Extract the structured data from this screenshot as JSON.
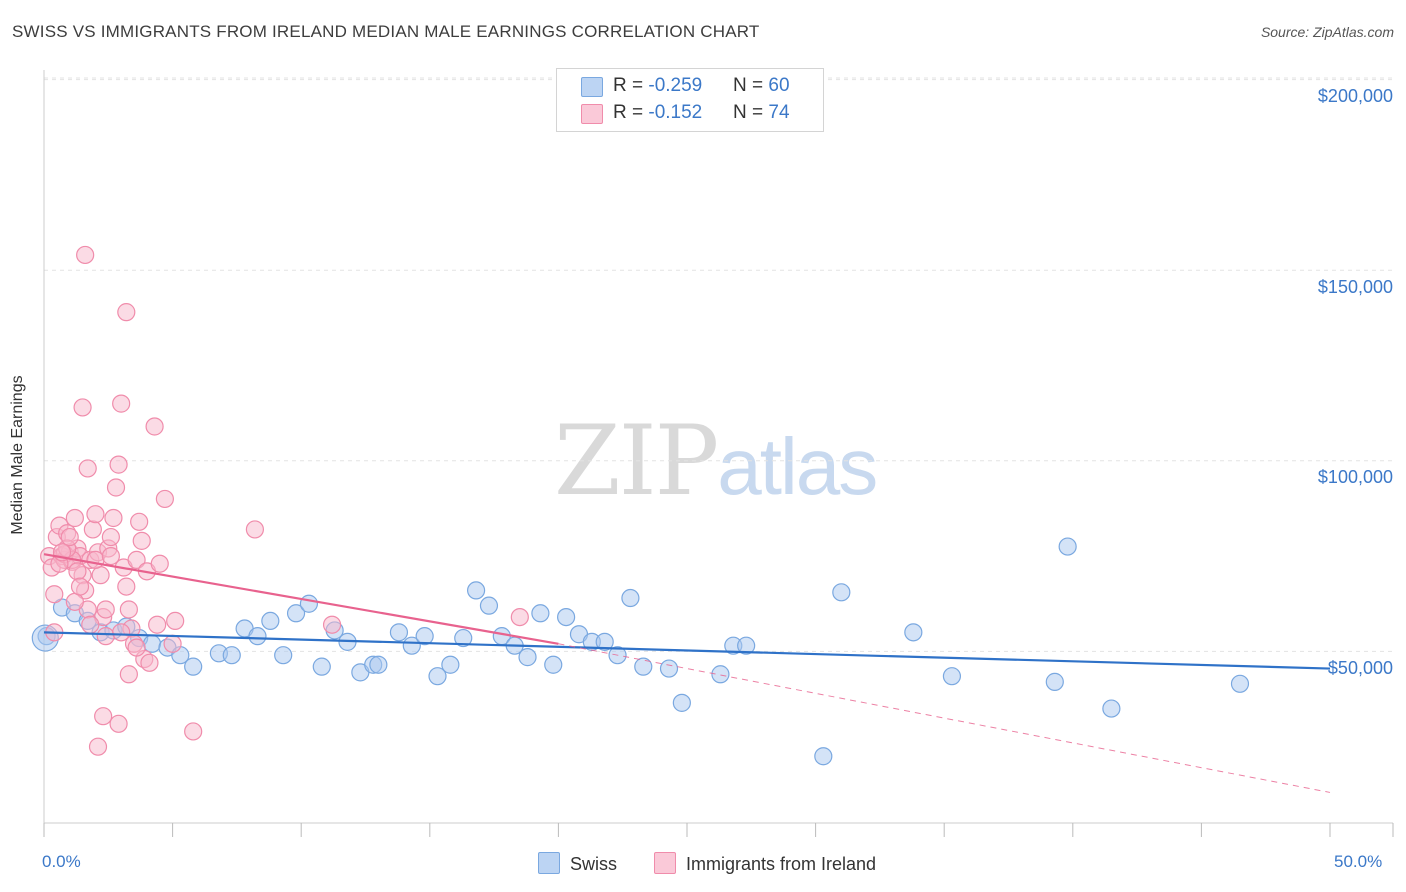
{
  "title": "SWISS VS IMMIGRANTS FROM IRELAND MEDIAN MALE EARNINGS CORRELATION CHART",
  "source": "Source: ZipAtlas.com",
  "watermark": {
    "zip": "ZIP",
    "atlas": "atlas"
  },
  "legend": {
    "swiss": {
      "r_label": "R = ",
      "r_value": "-0.259",
      "n_label": "N = ",
      "n_value": "60"
    },
    "ireland": {
      "r_label": "R = ",
      "r_value": "-0.152",
      "n_label": "N = ",
      "n_value": "74"
    }
  },
  "bottom_legend": {
    "swiss": "Swiss",
    "ireland": "Immigrants from Ireland"
  },
  "colors": {
    "swiss_fill": "#a9c8f0",
    "swiss_stroke": "#7aa8e0",
    "swiss_line": "#2f72c8",
    "ireland_fill": "#f7b8cc",
    "ireland_stroke": "#f08cab",
    "ireland_line": "#e8628e",
    "grid": "#e3e3e3",
    "axis_text": "#3b78c8"
  },
  "chart_data": {
    "type": "scatter",
    "title": "SWISS VS IMMIGRANTS FROM IRELAND MEDIAN MALE EARNINGS CORRELATION CHART",
    "xlabel": "",
    "ylabel": "Median Male Earnings",
    "xlim": [
      0,
      50
    ],
    "ylim": [
      0,
      205000
    ],
    "x_tick_labels": [
      "0.0%",
      "50.0%"
    ],
    "y_ticks": [
      {
        "value": 50000,
        "label": "$50,000"
      },
      {
        "value": 100000,
        "label": "$100,000"
      },
      {
        "value": 150000,
        "label": "$150,000"
      },
      {
        "value": 200000,
        "label": "$200,000"
      }
    ],
    "series": [
      {
        "name": "Swiss",
        "r": -0.259,
        "n": 60,
        "trend": {
          "x0": 0,
          "y0": 55000,
          "x1": 50,
          "y1": 45500
        },
        "points": [
          [
            0.1,
            54000
          ],
          [
            0.7,
            61500
          ],
          [
            1.2,
            60000
          ],
          [
            1.7,
            58000
          ],
          [
            2.2,
            55000
          ],
          [
            2.7,
            55500
          ],
          [
            3.2,
            56500
          ],
          [
            3.7,
            53500
          ],
          [
            4.2,
            52000
          ],
          [
            4.8,
            51000
          ],
          [
            5.3,
            49000
          ],
          [
            5.8,
            46000
          ],
          [
            6.8,
            49500
          ],
          [
            7.3,
            49000
          ],
          [
            7.8,
            56000
          ],
          [
            8.3,
            54000
          ],
          [
            8.8,
            58000
          ],
          [
            9.3,
            49000
          ],
          [
            9.8,
            60000
          ],
          [
            10.3,
            62500
          ],
          [
            10.8,
            46000
          ],
          [
            11.3,
            55500
          ],
          [
            11.8,
            52500
          ],
          [
            12.3,
            44500
          ],
          [
            12.8,
            46500
          ],
          [
            13.0,
            46500
          ],
          [
            13.8,
            55000
          ],
          [
            14.3,
            51500
          ],
          [
            14.8,
            54000
          ],
          [
            15.3,
            43500
          ],
          [
            15.8,
            46500
          ],
          [
            16.3,
            53500
          ],
          [
            16.8,
            66000
          ],
          [
            17.3,
            62000
          ],
          [
            17.8,
            54000
          ],
          [
            18.3,
            51500
          ],
          [
            18.8,
            48500
          ],
          [
            19.3,
            60000
          ],
          [
            19.8,
            46500
          ],
          [
            20.3,
            59000
          ],
          [
            20.8,
            54500
          ],
          [
            21.3,
            52500
          ],
          [
            21.8,
            52500
          ],
          [
            22.3,
            49000
          ],
          [
            22.8,
            64000
          ],
          [
            23.3,
            46000
          ],
          [
            24.3,
            45500
          ],
          [
            24.8,
            36500
          ],
          [
            26.3,
            44000
          ],
          [
            26.8,
            51500
          ],
          [
            27.3,
            51500
          ],
          [
            30.3,
            22500
          ],
          [
            31.0,
            65500
          ],
          [
            33.8,
            55000
          ],
          [
            35.3,
            43500
          ],
          [
            39.8,
            77500
          ],
          [
            39.3,
            42000
          ],
          [
            41.5,
            35000
          ],
          [
            46.5,
            41500
          ],
          [
            0.05,
            53500
          ]
        ]
      },
      {
        "name": "Immigrants from Ireland",
        "r": -0.152,
        "n": 74,
        "trend": {
          "x0": 0,
          "y0": 75500,
          "x1": 20,
          "y1": 52000
        },
        "trend_dashed": {
          "x0": 20,
          "y0": 52000,
          "x1": 50,
          "y1": 13000
        },
        "points": [
          [
            0.2,
            75000
          ],
          [
            0.3,
            72000
          ],
          [
            0.4,
            65000
          ],
          [
            0.4,
            55000
          ],
          [
            0.5,
            80000
          ],
          [
            0.6,
            83000
          ],
          [
            0.7,
            75000
          ],
          [
            0.8,
            74000
          ],
          [
            0.9,
            81000
          ],
          [
            1.0,
            76000
          ],
          [
            1.1,
            73500
          ],
          [
            1.2,
            85000
          ],
          [
            1.3,
            77000
          ],
          [
            1.4,
            75000
          ],
          [
            1.5,
            70000
          ],
          [
            1.6,
            66000
          ],
          [
            1.7,
            61000
          ],
          [
            1.8,
            74000
          ],
          [
            1.9,
            82000
          ],
          [
            2.0,
            86000
          ],
          [
            2.1,
            76000
          ],
          [
            2.2,
            70000
          ],
          [
            2.3,
            59000
          ],
          [
            2.4,
            54000
          ],
          [
            2.5,
            77000
          ],
          [
            2.6,
            80000
          ],
          [
            2.7,
            85000
          ],
          [
            2.8,
            93000
          ],
          [
            2.9,
            99000
          ],
          [
            3.0,
            115000
          ],
          [
            3.1,
            72000
          ],
          [
            3.2,
            67000
          ],
          [
            3.3,
            61000
          ],
          [
            3.4,
            56000
          ],
          [
            3.5,
            52000
          ],
          [
            3.6,
            74000
          ],
          [
            3.7,
            84000
          ],
          [
            3.8,
            79000
          ],
          [
            3.9,
            48000
          ],
          [
            4.0,
            71000
          ],
          [
            4.1,
            47000
          ],
          [
            4.3,
            109000
          ],
          [
            4.5,
            73000
          ],
          [
            4.7,
            90000
          ],
          [
            5.0,
            52000
          ],
          [
            5.1,
            58000
          ],
          [
            1.6,
            154000
          ],
          [
            3.2,
            139000
          ],
          [
            1.5,
            114000
          ],
          [
            1.7,
            98000
          ],
          [
            2.3,
            33000
          ],
          [
            2.1,
            25000
          ],
          [
            2.9,
            31000
          ],
          [
            5.8,
            29000
          ],
          [
            3.3,
            44000
          ],
          [
            8.2,
            82000
          ],
          [
            11.2,
            57000
          ],
          [
            18.5,
            59000
          ],
          [
            0.8,
            75500
          ],
          [
            1.1,
            74000
          ],
          [
            0.9,
            77000
          ],
          [
            1.3,
            71000
          ],
          [
            0.6,
            73000
          ],
          [
            1.2,
            63000
          ],
          [
            2.4,
            61000
          ],
          [
            1.8,
            57000
          ],
          [
            2.0,
            74000
          ],
          [
            2.6,
            75000
          ],
          [
            1.0,
            80000
          ],
          [
            0.7,
            76000
          ],
          [
            3.0,
            55000
          ],
          [
            3.6,
            51000
          ],
          [
            4.4,
            57000
          ],
          [
            1.4,
            67000
          ]
        ]
      }
    ]
  }
}
